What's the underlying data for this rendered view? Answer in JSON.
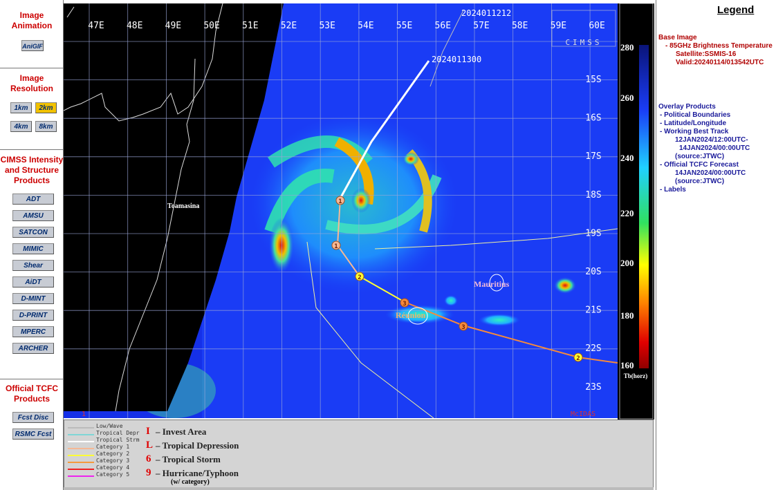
{
  "sidebar": {
    "sections": [
      {
        "title": "Image Animation",
        "buttons": [
          "AniGIF"
        ]
      },
      {
        "title": "Image Resolution",
        "buttons": [
          "1km",
          "2km",
          "4km",
          "8km"
        ]
      },
      {
        "title": "CIMSS Intensity and Structure Products",
        "buttons": [
          "ADT",
          "AMSU",
          "SATCON",
          "MIMIC",
          "Shear",
          "AiDT",
          "D-MINT",
          "D-PRINT",
          "MPERC",
          "ARCHER"
        ]
      },
      {
        "title": "Official TCFC Products",
        "buttons": [
          "Fcst Disc",
          "RSMC Fcst"
        ]
      }
    ]
  },
  "image": {
    "lon_labels": [
      "47E",
      "48E",
      "49E",
      "50E",
      "51E",
      "52E",
      "53E",
      "54E",
      "55E",
      "56E",
      "57E",
      "58E",
      "59E",
      "60E"
    ],
    "lat_labels": [
      "15S",
      "16S",
      "17S",
      "18S",
      "19S",
      "20S",
      "21S",
      "22S",
      "23S"
    ],
    "track_labels": [
      "2024011212",
      "2024011300"
    ],
    "place_labels": [
      "Toamasina",
      "Mauritius",
      "Réunion"
    ],
    "storm_markers": [
      "1",
      "1",
      "2",
      "3",
      "3",
      "2"
    ],
    "logo": "CIMSS",
    "corner_labels": [
      "1",
      "McIDAS",
      "11"
    ]
  },
  "colorbar": {
    "ticks": [
      "280",
      "260",
      "240",
      "220",
      "200",
      "180",
      "160"
    ],
    "unit": "Tb(horz)"
  },
  "legend": {
    "title": "Legend",
    "base_title": "Base Image",
    "base_items": [
      "-  85GHz Brightness Temperature",
      "Satellite:SSMIS-16",
      "Valid:20240114/013542UTC"
    ],
    "overlay_title": "Overlay Products",
    "overlay_items": [
      "-  Political Boundaries",
      "-  Latitude/Longitude",
      "-  Working Best Track",
      "12JAN2024/12:00UTC-",
      "14JAN2024/00:00UTC",
      "(source:JTWC)",
      "-  Official TCFC Forecast",
      "14JAN2024/00:00UTC",
      "(source:JTWC)",
      "-  Labels"
    ]
  },
  "track_key": {
    "lines": [
      {
        "name": "Low/Wave",
        "color": "#bbbbbb"
      },
      {
        "name": "Tropical Depr",
        "color": "#7fd6d6"
      },
      {
        "name": "Tropical Strm",
        "color": "#ffffff"
      },
      {
        "name": "Category 1",
        "color": "#f5b895"
      },
      {
        "name": "Category 2",
        "color": "#ffff33"
      },
      {
        "name": "Category 3",
        "color": "#f59a3c"
      },
      {
        "name": "Category 4",
        "color": "#ee2222"
      },
      {
        "name": "Category 5",
        "color": "#ee22ee"
      }
    ],
    "symbols": [
      {
        "glyph": "I",
        "text": "– Invest Area"
      },
      {
        "glyph": "L",
        "text": "– Tropical Depression"
      },
      {
        "glyph": "6",
        "text": "– Tropical Storm"
      },
      {
        "glyph": "9",
        "text": "– Hurricane/Typhoon"
      }
    ],
    "note": "(w/ category)"
  }
}
